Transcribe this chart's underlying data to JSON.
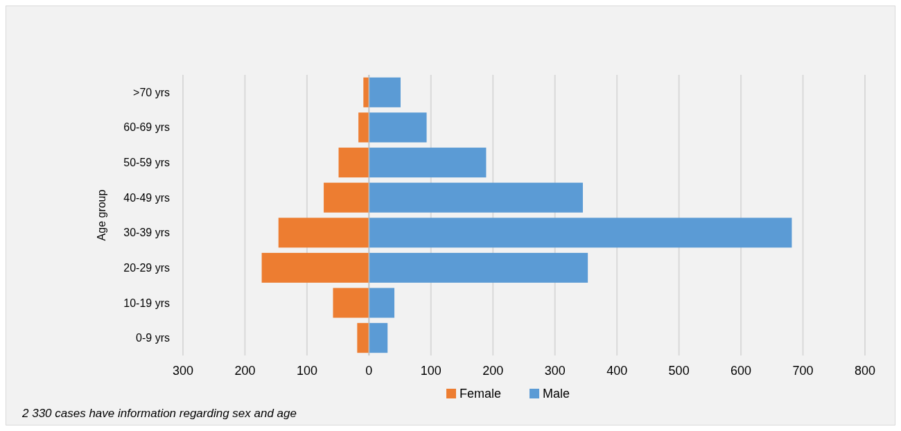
{
  "chart_data": {
    "type": "bar",
    "orientation": "horizontal",
    "stacked": true,
    "ylabel": "Age group",
    "categories": [
      ">70 yrs",
      "60-69 yrs",
      "50-59 yrs",
      "40-49 yrs",
      "30-39 yrs",
      "20-29 yrs",
      "10-19 yrs",
      "0-9 yrs"
    ],
    "series": [
      {
        "name": "Female",
        "color": "#ed7d31",
        "values": [
          -9,
          -17,
          -49,
          -73,
          -146,
          -173,
          -58,
          -19
        ]
      },
      {
        "name": "Male",
        "color": "#5b9bd5",
        "values": [
          51,
          93,
          189,
          345,
          682,
          353,
          41,
          30
        ]
      }
    ],
    "xlim": [
      -300,
      800
    ],
    "xticks": [
      {
        "value": -300,
        "label": "300"
      },
      {
        "value": -200,
        "label": "200"
      },
      {
        "value": -100,
        "label": "100"
      },
      0,
      100,
      200,
      300,
      400,
      500,
      600,
      700,
      800
    ],
    "grid": "x",
    "legend": "bottom",
    "annotations": [
      "2 330 cases have information regarding sex and age"
    ]
  }
}
